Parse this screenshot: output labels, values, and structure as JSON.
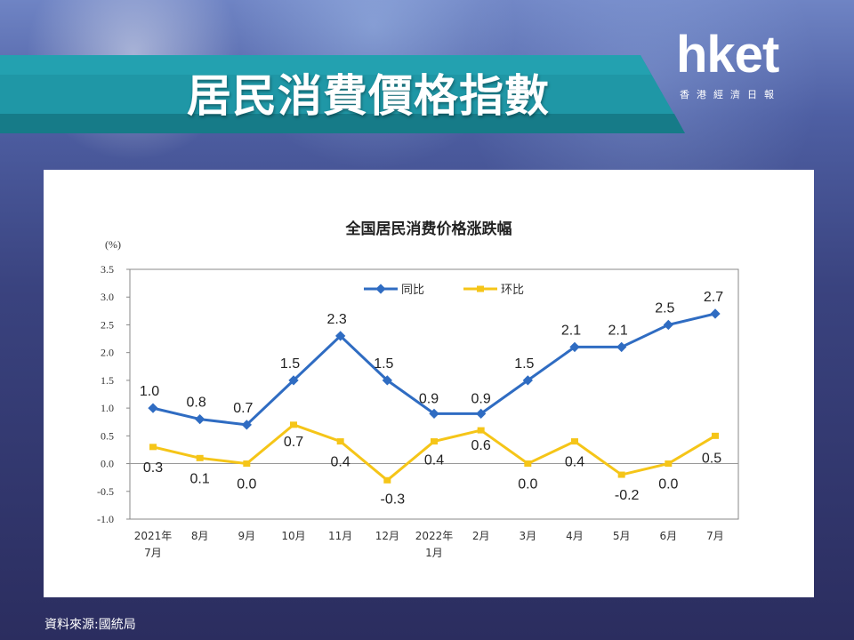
{
  "header": {
    "title": "居民消費價格指數",
    "logo_main": "hket",
    "logo_sub": "香港經濟日報",
    "colors": {
      "banner": "#1f97a6",
      "banner_dark": "#167b88"
    }
  },
  "footer": {
    "source": "資料來源:國統局"
  },
  "chart_data": {
    "type": "line",
    "title": "全国居民消费价格涨跌幅",
    "ylabel": "(%)",
    "ylim": [
      -1.0,
      3.5
    ],
    "yticks": [
      "3.5",
      "3.0",
      "2.5",
      "2.0",
      "1.5",
      "1.0",
      "0.5",
      "0.0",
      "-0.5",
      "-1.0"
    ],
    "ytick_values": [
      3.5,
      3.0,
      2.5,
      2.0,
      1.5,
      1.0,
      0.5,
      0.0,
      -0.5,
      -1.0
    ],
    "categories": [
      [
        "2021年",
        "7月"
      ],
      [
        "8月"
      ],
      [
        "9月"
      ],
      [
        "10月"
      ],
      [
        "11月"
      ],
      [
        "12月"
      ],
      [
        "2022年",
        "1月"
      ],
      [
        "2月"
      ],
      [
        "3月"
      ],
      [
        "4月"
      ],
      [
        "5月"
      ],
      [
        "6月"
      ],
      [
        "7月"
      ]
    ],
    "legend_position": "top-center",
    "grid": false,
    "series": [
      {
        "name": "同比",
        "color": "#2f6cc2",
        "values": [
          1.0,
          0.8,
          0.7,
          1.5,
          2.3,
          1.5,
          0.9,
          0.9,
          1.5,
          2.1,
          2.1,
          2.5,
          2.7
        ],
        "labels": [
          "1.0",
          "0.8",
          "0.7",
          "1.5",
          "2.3",
          "1.5",
          "0.9",
          "0.9",
          "1.5",
          "2.1",
          "2.1",
          "2.5",
          "2.7"
        ]
      },
      {
        "name": "环比",
        "color": "#f5c518",
        "values": [
          0.3,
          0.1,
          0.0,
          0.7,
          0.4,
          -0.3,
          0.4,
          0.6,
          0.0,
          0.4,
          -0.2,
          0.0,
          0.5
        ],
        "labels": [
          "0.3",
          "0.1",
          "0.0",
          "0.7",
          "0.4",
          "-0.3",
          "0.4",
          "0.6",
          "0.0",
          "0.4",
          "-0.2",
          "0.0",
          "0.5"
        ]
      }
    ]
  }
}
